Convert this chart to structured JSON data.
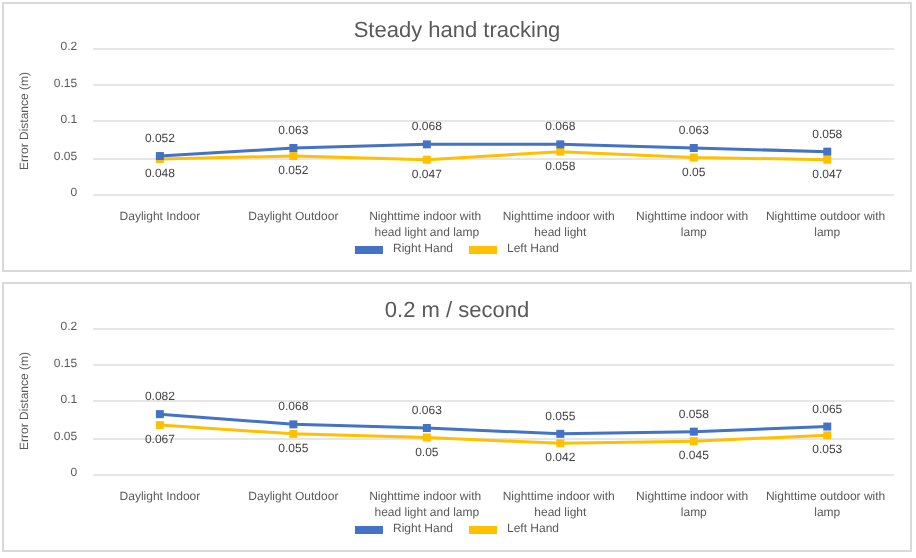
{
  "chart_data": [
    {
      "type": "line",
      "title": "Steady hand tracking",
      "ylabel": "Error Distance (m)",
      "categories": [
        "Daylight Indoor",
        "Daylight Outdoor",
        "Nighttime indoor with head light and lamp",
        "Nighttime indoor with head light",
        "Nighttime indoor with lamp",
        "Nighttime outdoor with lamp"
      ],
      "series": [
        {
          "name": "Right Hand",
          "color": "#4472c4",
          "values": [
            0.052,
            0.063,
            0.068,
            0.068,
            0.063,
            0.058
          ]
        },
        {
          "name": "Left Hand",
          "color": "#ffc000",
          "values": [
            0.048,
            0.052,
            0.047,
            0.058,
            0.05,
            0.047
          ]
        }
      ],
      "ylim": [
        0,
        0.2
      ],
      "yticks": [
        0,
        0.05,
        0.1,
        0.15,
        0.2
      ],
      "grid": "y",
      "legend": "bottom",
      "marker": "square",
      "data_labels": true
    },
    {
      "type": "line",
      "title": "0.2 m / second",
      "ylabel": "Error Distance (m)",
      "categories": [
        "Daylight Indoor",
        "Daylight Outdoor",
        "Nighttime indoor with head light and lamp",
        "Nighttime indoor with head light",
        "Nighttime indoor with lamp",
        "Nighttime outdoor with lamp"
      ],
      "series": [
        {
          "name": "Right Hand",
          "color": "#4472c4",
          "values": [
            0.082,
            0.068,
            0.063,
            0.055,
            0.058,
            0.065
          ]
        },
        {
          "name": "Left Hand",
          "color": "#ffc000",
          "values": [
            0.067,
            0.055,
            0.05,
            0.042,
            0.045,
            0.053
          ]
        }
      ],
      "ylim": [
        0,
        0.2
      ],
      "yticks": [
        0,
        0.05,
        0.1,
        0.15,
        0.2
      ],
      "grid": "y",
      "legend": "bottom",
      "marker": "square",
      "data_labels": true
    }
  ]
}
